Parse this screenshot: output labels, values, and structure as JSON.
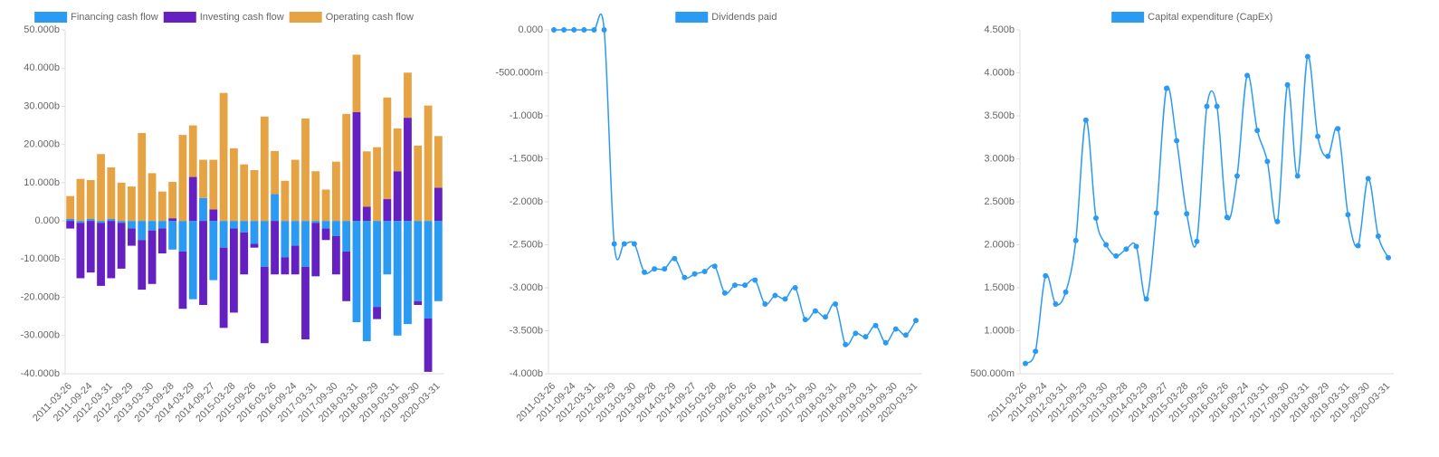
{
  "chart_data": [
    {
      "type": "bar",
      "stacked": true,
      "categories": [
        "2011-03-26",
        null,
        "2011-09-24",
        null,
        "2012-03-31",
        null,
        "2012-09-29",
        null,
        "2013-03-30",
        null,
        "2013-09-28",
        null,
        "2014-03-29",
        null,
        "2014-09-27",
        null,
        "2015-03-28",
        null,
        "2015-09-26",
        null,
        "2016-03-26",
        null,
        "2016-09-24",
        null,
        "2017-03-31",
        null,
        "2017-09-30",
        null,
        "2018-03-31",
        null,
        "2018-09-29",
        null,
        "2019-03-31",
        null,
        "2019-09-30",
        null,
        "2020-03-31"
      ],
      "series": [
        {
          "name": "Financing cash flow",
          "color": "#2b9af3",
          "values": [
            0.5,
            -0.5,
            0.5,
            -0.5,
            0.5,
            -0.5,
            -2,
            -5,
            -2.5,
            -2,
            -7.5,
            -8,
            -20.5,
            6,
            -15.5,
            -7,
            -2,
            -3,
            -6,
            -12,
            7,
            -9.5,
            -6.5,
            -12,
            -0.5,
            -2,
            -4,
            -8,
            -26.5,
            -31.5,
            -22.5,
            -14,
            -30,
            -27,
            -21,
            -25.5,
            -21
          ]
        },
        {
          "name": "Investing cash flow",
          "color": "#6420c1",
          "values": [
            -2,
            -14.5,
            -13.5,
            -16.5,
            -15,
            -12,
            -4.5,
            -13,
            -14,
            -6.5,
            0.7,
            -15,
            11.5,
            -22,
            3,
            -21,
            -22,
            -11,
            -1,
            -20,
            -14,
            -4.5,
            -7.5,
            -19,
            -14,
            -3,
            -10,
            -13,
            28.5,
            3.7,
            -3.2,
            5.7,
            13,
            27,
            -1,
            -14,
            8.7
          ]
        },
        {
          "name": "Operating cash flow",
          "color": "#e6a344",
          "values": [
            6,
            11,
            10.2,
            17.5,
            13.5,
            10,
            9,
            23,
            12.5,
            7.7,
            9.5,
            22.5,
            13.5,
            10,
            13,
            33.5,
            19,
            14.8,
            13.3,
            27.3,
            11.3,
            10.5,
            16,
            26.8,
            13,
            8.2,
            15.5,
            28,
            15,
            14.5,
            19.3,
            26.6,
            11.2,
            11.8,
            19.7,
            30.2,
            13.5
          ]
        }
      ],
      "ylim": [
        -40,
        50
      ],
      "yticks": [
        {
          "value": -40,
          "label": "-40.000b"
        },
        {
          "value": -30,
          "label": "-30.000b"
        },
        {
          "value": -20,
          "label": "-20.000b"
        },
        {
          "value": -10,
          "label": "-10.000b"
        },
        {
          "value": 0,
          "label": "0.000"
        },
        {
          "value": 10,
          "label": "10.000b"
        },
        {
          "value": 20,
          "label": "20.000b"
        },
        {
          "value": 30,
          "label": "30.000b"
        },
        {
          "value": 40,
          "label": "40.000b"
        },
        {
          "value": 50,
          "label": "50.000b"
        }
      ]
    },
    {
      "type": "line",
      "categories": [
        "2011-03-26",
        null,
        "2011-09-24",
        null,
        "2012-03-31",
        null,
        "2012-09-29",
        null,
        "2013-03-30",
        null,
        "2013-09-28",
        null,
        "2014-03-29",
        null,
        "2014-09-27",
        null,
        "2015-03-28",
        null,
        "2015-09-26",
        null,
        "2016-03-26",
        null,
        "2016-09-24",
        null,
        "2017-03-31",
        null,
        "2017-09-30",
        null,
        "2018-03-31",
        null,
        "2018-09-29",
        null,
        "2019-03-31",
        null,
        "2019-09-30",
        null,
        "2020-03-31"
      ],
      "series": [
        {
          "name": "Dividends paid",
          "color": "#2b9af3",
          "values": [
            0,
            0,
            0,
            0,
            0,
            0,
            -2.49,
            -2.49,
            -2.49,
            -2.82,
            -2.78,
            -2.78,
            -2.66,
            -2.88,
            -2.84,
            -2.81,
            -2.75,
            -3.06,
            -2.97,
            -2.97,
            -2.91,
            -3.19,
            -3.09,
            -3.13,
            -3.0,
            -3.37,
            -3.27,
            -3.34,
            -3.19,
            -3.66,
            -3.53,
            -3.57,
            -3.44,
            -3.64,
            -3.48,
            -3.55,
            -3.38
          ]
        }
      ],
      "ylim": [
        -4,
        0
      ],
      "yticks": [
        {
          "value": -4,
          "label": "-4.000b"
        },
        {
          "value": -3.5,
          "label": "-3.500b"
        },
        {
          "value": -3,
          "label": "-3.000b"
        },
        {
          "value": -2.5,
          "label": "-2.500b"
        },
        {
          "value": -2,
          "label": "-2.000b"
        },
        {
          "value": -1.5,
          "label": "-1.500b"
        },
        {
          "value": -1,
          "label": "-1.000b"
        },
        {
          "value": -0.5,
          "label": "-500.000m"
        },
        {
          "value": 0,
          "label": "0.000"
        }
      ]
    },
    {
      "type": "line",
      "categories": [
        "2011-03-26",
        null,
        "2011-09-24",
        null,
        "2012-03-31",
        null,
        "2012-09-29",
        null,
        "2013-03-30",
        null,
        "2013-09-28",
        null,
        "2014-03-29",
        null,
        "2014-09-27",
        null,
        "2015-03-28",
        null,
        "2015-09-26",
        null,
        "2016-03-26",
        null,
        "2016-09-24",
        null,
        "2017-03-31",
        null,
        "2017-09-30",
        null,
        "2018-03-31",
        null,
        "2018-09-29",
        null,
        "2019-03-31",
        null,
        "2019-09-30",
        null,
        "2020-03-31"
      ],
      "series": [
        {
          "name": "Capital expenditure (CapEx)",
          "color": "#2b9af3",
          "values": [
            0.62,
            0.76,
            1.64,
            1.31,
            1.45,
            2.05,
            3.45,
            2.31,
            2.0,
            1.87,
            1.95,
            1.98,
            1.37,
            2.37,
            3.82,
            3.21,
            2.36,
            2.04,
            3.61,
            3.61,
            2.32,
            2.8,
            3.97,
            3.33,
            2.97,
            2.27,
            3.86,
            2.8,
            4.19,
            3.26,
            3.03,
            3.35,
            2.35,
            1.99,
            2.77,
            2.1,
            1.85
          ]
        }
      ],
      "ylim": [
        0.5,
        4.5
      ],
      "yticks": [
        {
          "value": 0.5,
          "label": "500.000m"
        },
        {
          "value": 1,
          "label": "1.000b"
        },
        {
          "value": 1.5,
          "label": "1.500b"
        },
        {
          "value": 2,
          "label": "2.000b"
        },
        {
          "value": 2.5,
          "label": "2.500b"
        },
        {
          "value": 3,
          "label": "3.000b"
        },
        {
          "value": 3.5,
          "label": "3.500b"
        },
        {
          "value": 4,
          "label": "4.000b"
        },
        {
          "value": 4.5,
          "label": "4.500b"
        }
      ]
    }
  ]
}
